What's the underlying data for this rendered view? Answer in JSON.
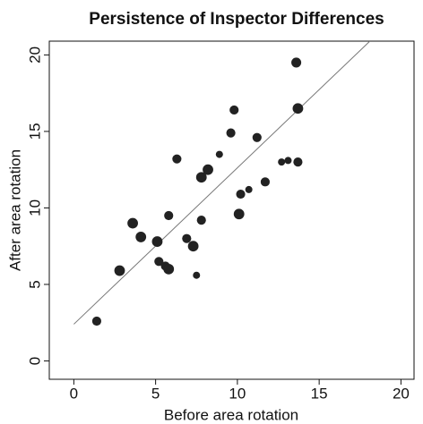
{
  "chart_data": {
    "type": "scatter",
    "title": "Persistence of Inspector Differences",
    "x_label": "Before area rotation",
    "y_label": "After area rotation",
    "x": [
      1.4,
      2.8,
      3.6,
      4.1,
      5.1,
      5.2,
      5.6,
      5.8,
      5.8,
      6.3,
      6.9,
      7.3,
      7.5,
      7.8,
      7.8,
      8.2,
      8.9,
      9.6,
      9.8,
      10.1,
      10.2,
      10.7,
      11.2,
      11.7,
      12.7,
      13.1,
      13.6,
      13.7,
      13.7
    ],
    "y": [
      2.6,
      5.9,
      9.0,
      8.1,
      7.8,
      6.5,
      6.2,
      6.0,
      9.5,
      13.2,
      8.0,
      7.5,
      5.6,
      9.2,
      12.0,
      12.5,
      13.5,
      14.9,
      16.4,
      9.6,
      10.9,
      11.2,
      14.6,
      11.7,
      13.0,
      13.1,
      19.5,
      16.5,
      13.0
    ],
    "sizes": [
      2,
      3,
      3,
      3,
      3,
      2,
      2,
      3,
      2,
      2,
      2,
      3,
      1,
      2,
      3,
      3,
      1,
      2,
      2,
      3,
      2,
      1,
      2,
      2,
      1,
      1,
      2.5,
      3,
      2
    ],
    "color": "#222222",
    "fit": {
      "x": [
        0,
        18.1
      ],
      "y": [
        2.4,
        20.9
      ],
      "color": "#777777"
    },
    "xlim": [
      -1.5,
      20.8
    ],
    "ylim": [
      -1.2,
      20.9
    ],
    "xticks": [
      0,
      5,
      10,
      15,
      20
    ],
    "yticks": [
      0,
      5,
      10,
      15,
      20
    ],
    "grid": false
  }
}
